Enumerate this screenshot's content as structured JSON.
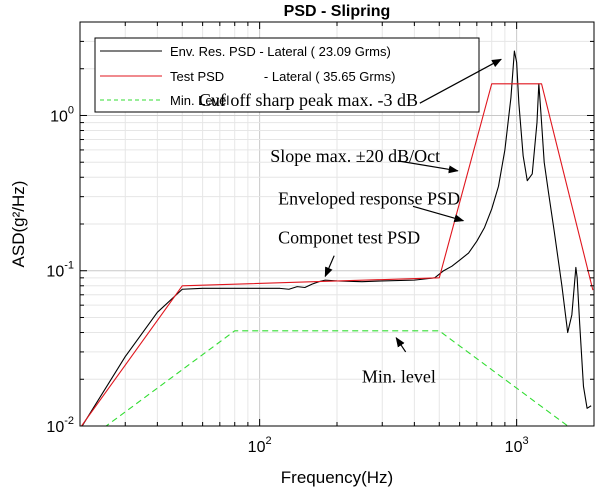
{
  "chart_data": {
    "type": "line",
    "title": "PSD - Slipring",
    "xlabel": "Frequency(Hz)",
    "ylabel": "ASD(g²/Hz)",
    "x_scale": "log",
    "y_scale": "log",
    "xlim": [
      20,
      2000
    ],
    "ylim": [
      0.01,
      4
    ],
    "x_ticks": [
      {
        "value": 100,
        "base": "10",
        "exp": "2"
      },
      {
        "value": 1000,
        "base": "10",
        "exp": "3"
      }
    ],
    "y_ticks": [
      {
        "value": 0.01,
        "base": "10",
        "exp": "-2"
      },
      {
        "value": 0.1,
        "base": "10",
        "exp": "-1"
      },
      {
        "value": 1,
        "base": "10",
        "exp": "0"
      }
    ],
    "grid": true,
    "legend_position": "top-left",
    "series": [
      {
        "name": "Env. Res. PSD - Lateral ( 23.09 Grms)",
        "color": "#000000",
        "style": "solid",
        "points": [
          [
            20,
            0.0095
          ],
          [
            30,
            0.028
          ],
          [
            40,
            0.054
          ],
          [
            50,
            0.076
          ],
          [
            60,
            0.077
          ],
          [
            80,
            0.077
          ],
          [
            100,
            0.077
          ],
          [
            120,
            0.077
          ],
          [
            130,
            0.076
          ],
          [
            140,
            0.079
          ],
          [
            150,
            0.078
          ],
          [
            160,
            0.082
          ],
          [
            170,
            0.085
          ],
          [
            180,
            0.087
          ],
          [
            200,
            0.086
          ],
          [
            250,
            0.085
          ],
          [
            300,
            0.086
          ],
          [
            400,
            0.087
          ],
          [
            480,
            0.09
          ],
          [
            520,
            0.1
          ],
          [
            560,
            0.107
          ],
          [
            600,
            0.117
          ],
          [
            650,
            0.13
          ],
          [
            700,
            0.155
          ],
          [
            750,
            0.19
          ],
          [
            800,
            0.25
          ],
          [
            850,
            0.35
          ],
          [
            900,
            0.6
          ],
          [
            950,
            1.3
          ],
          [
            980,
            2.6
          ],
          [
            1000,
            2.2
          ],
          [
            1020,
            1.2
          ],
          [
            1060,
            0.55
          ],
          [
            1100,
            0.38
          ],
          [
            1150,
            0.42
          ],
          [
            1200,
            0.9
          ],
          [
            1220,
            1.6
          ],
          [
            1245,
            1.0
          ],
          [
            1280,
            0.5
          ],
          [
            1330,
            0.32
          ],
          [
            1400,
            0.18
          ],
          [
            1500,
            0.08
          ],
          [
            1580,
            0.04
          ],
          [
            1640,
            0.052
          ],
          [
            1700,
            0.105
          ],
          [
            1720,
            0.09
          ],
          [
            1760,
            0.045
          ],
          [
            1820,
            0.018
          ],
          [
            1880,
            0.013
          ],
          [
            1950,
            0.0135
          ]
        ]
      },
      {
        "name": "Test PSD           - Lateral ( 35.65 Grms)",
        "color": "#e0161e",
        "style": "solid",
        "points": [
          [
            20,
            0.0097
          ],
          [
            50,
            0.08
          ],
          [
            500,
            0.09
          ],
          [
            800,
            1.6
          ],
          [
            1250,
            1.6
          ],
          [
            1980,
            0.075
          ]
        ]
      },
      {
        "name": "Min. Level",
        "color": "#33dd33",
        "style": "dashed",
        "points": [
          [
            20,
            0.0075
          ],
          [
            80,
            0.041
          ],
          [
            500,
            0.041
          ],
          [
            2000,
            0.0075
          ]
        ]
      }
    ],
    "annotations": [
      {
        "text": "Cuf off sharp peak max. -3 dB",
        "at": [
          58,
          1.15
        ],
        "arrow_from": [
          420,
          1.2
        ],
        "arrow_to": [
          870,
          2.3
        ]
      },
      {
        "text": "Slope max. ±20 dB/Oct",
        "at": [
          110,
          0.5
        ],
        "arrow_from": [
          345,
          0.51
        ],
        "arrow_to": [
          590,
          0.44
        ]
      },
      {
        "text": "Enveloped response PSD",
        "at": [
          118,
          0.268
        ],
        "arrow_from": [
          395,
          0.26
        ],
        "arrow_to": [
          620,
          0.21
        ]
      },
      {
        "text": "Componet test PSD",
        "at": [
          118,
          0.15
        ],
        "arrow_from": [
          195,
          0.125
        ],
        "arrow_to": [
          180,
          0.092
        ]
      },
      {
        "text": "Min. level",
        "at": [
          250,
          0.019
        ],
        "arrow_from": [
          370,
          0.03
        ],
        "arrow_to": [
          340,
          0.037
        ]
      }
    ]
  }
}
